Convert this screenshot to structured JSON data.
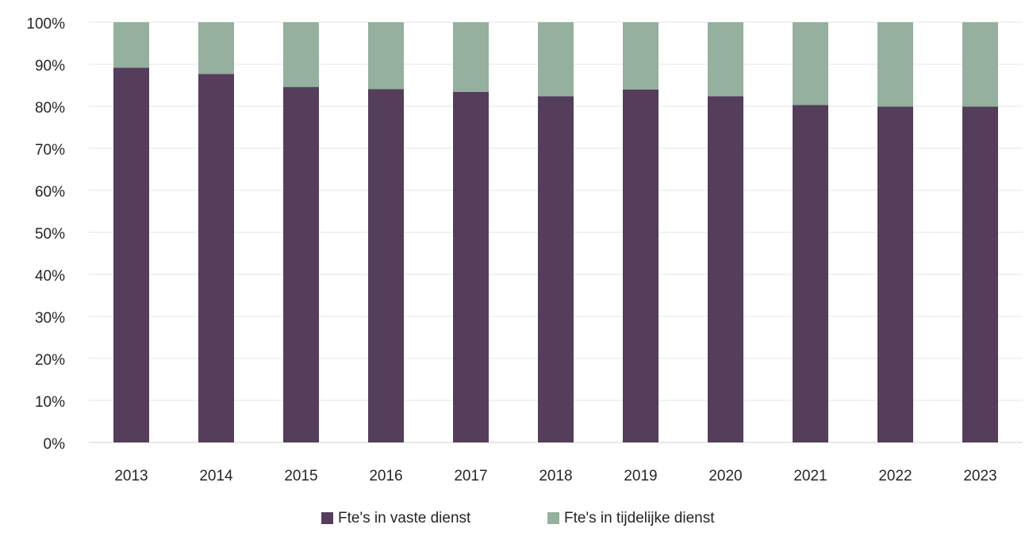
{
  "chart_data": {
    "type": "bar",
    "stacked": true,
    "categories": [
      "2013",
      "2014",
      "2015",
      "2016",
      "2017",
      "2018",
      "2019",
      "2020",
      "2021",
      "2022",
      "2023"
    ],
    "series": [
      {
        "name": "Fte's in vaste dienst",
        "color": "#553d5c",
        "values": [
          89.2,
          87.7,
          84.6,
          84.1,
          83.4,
          82.4,
          84.0,
          82.4,
          80.3,
          79.9,
          79.9
        ]
      },
      {
        "name": "Fte's in tijdelijke dienst",
        "color": "#95b09e",
        "values": [
          10.8,
          12.3,
          15.4,
          15.9,
          16.6,
          17.6,
          16.0,
          17.6,
          19.7,
          20.1,
          20.1
        ]
      }
    ],
    "y_ticks": [
      "0%",
      "10%",
      "20%",
      "30%",
      "40%",
      "50%",
      "60%",
      "70%",
      "80%",
      "90%",
      "100%"
    ],
    "ylim": [
      0,
      100
    ],
    "y_unit": "%",
    "grid": true,
    "legend_position": "bottom",
    "title": "",
    "xlabel": "",
    "ylabel": ""
  }
}
